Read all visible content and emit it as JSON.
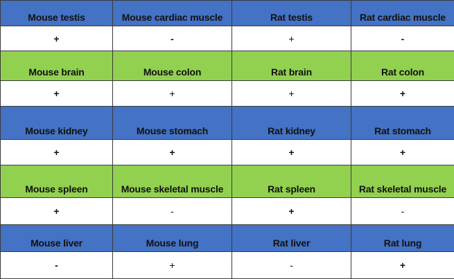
{
  "colors": {
    "blue_header": "#4472c4",
    "green_header": "#92d050",
    "value_row": "#ffffff"
  },
  "blocks": [
    {
      "color": "blue",
      "labels": [
        "Mouse testis",
        "Mouse cardiac muscle",
        "Rat testis",
        "Rat cardiac muscle"
      ],
      "values": [
        "+",
        "-",
        "+",
        "-"
      ],
      "bold": [
        true,
        true,
        false,
        true
      ]
    },
    {
      "color": "green",
      "labels": [
        "Mouse brain",
        "Mouse colon",
        "Rat brain",
        "Rat colon"
      ],
      "values": [
        "+",
        "+",
        "+",
        "+"
      ],
      "bold": [
        true,
        false,
        false,
        true
      ]
    },
    {
      "color": "blue",
      "labels": [
        "Mouse kidney",
        "Mouse stomach",
        "Rat kidney",
        "Rat stomach"
      ],
      "values": [
        "+",
        "+",
        "+",
        "+"
      ],
      "bold": [
        true,
        true,
        true,
        true
      ]
    },
    {
      "color": "green",
      "labels": [
        "Mouse spleen",
        "Mouse skeletal muscle",
        "Rat spleen",
        "Rat skeletal muscle"
      ],
      "values": [
        "+",
        "-",
        "+",
        "-"
      ],
      "bold": [
        true,
        false,
        true,
        false
      ]
    },
    {
      "color": "blue",
      "labels": [
        "Mouse liver",
        "Mouse lung",
        "Rat liver",
        "Rat lung"
      ],
      "values": [
        "-",
        "+",
        "-",
        "+"
      ],
      "bold": [
        true,
        false,
        false,
        true
      ]
    }
  ]
}
